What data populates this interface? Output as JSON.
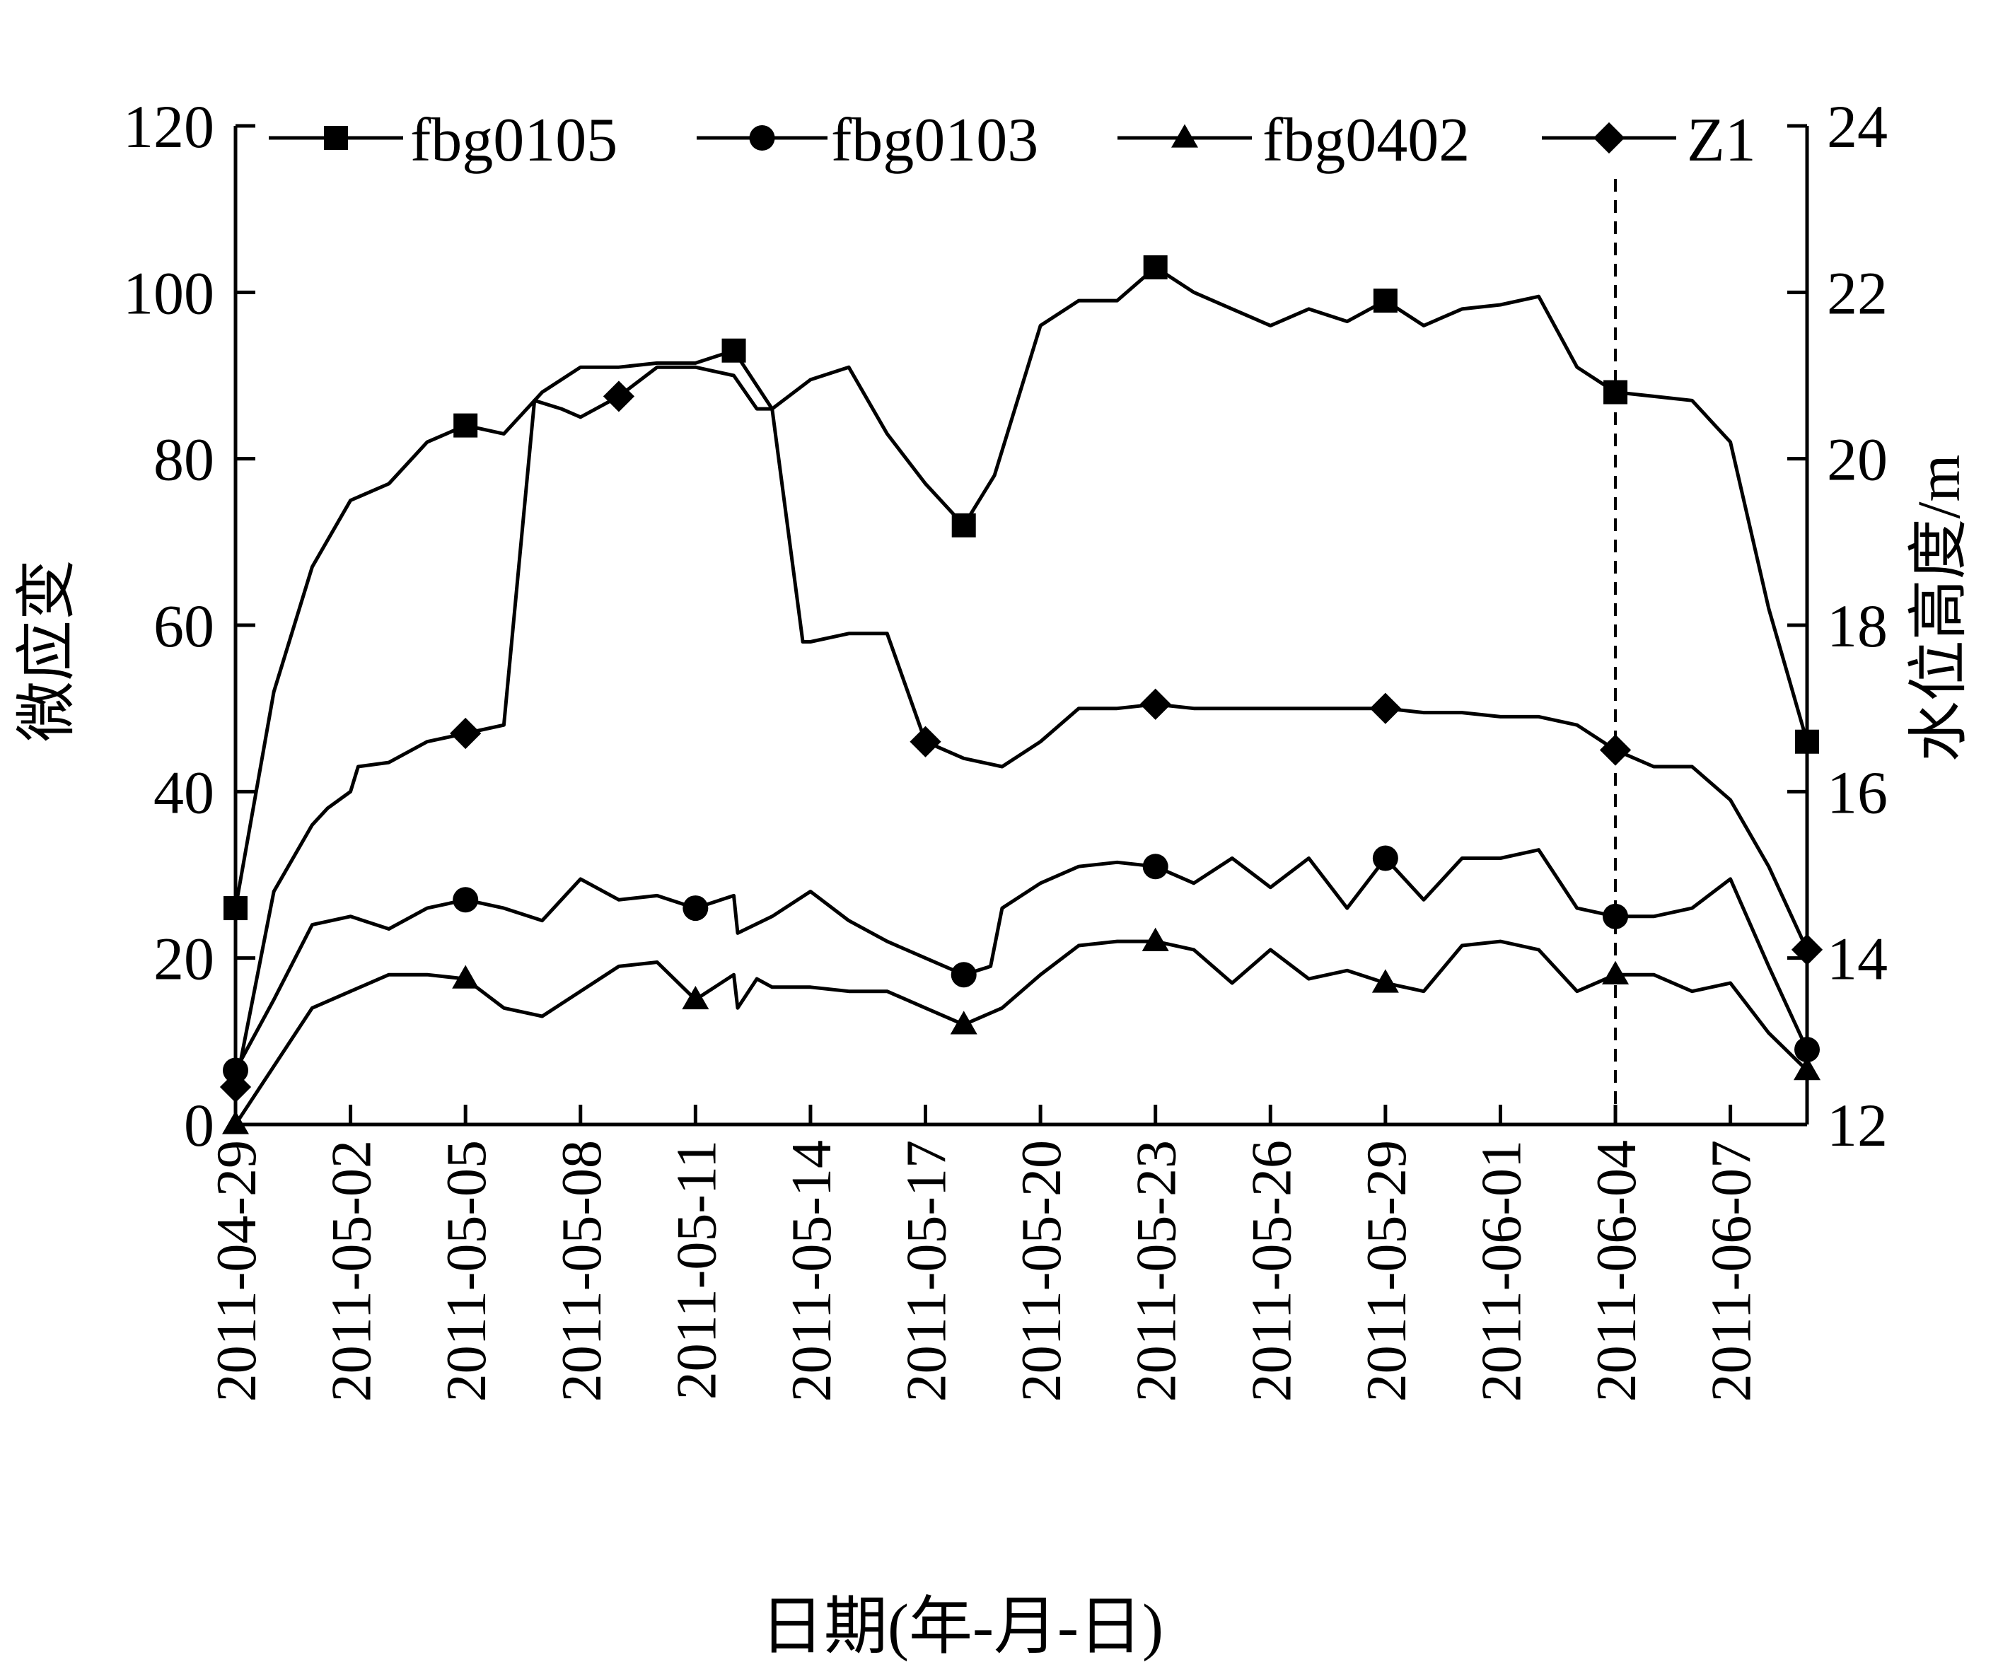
{
  "chart_data": {
    "type": "line",
    "title": "",
    "xlabel": "日期(年-月-日)",
    "ylabel": "微应变",
    "y2label": "水位高度/m",
    "ylim": [
      0,
      120
    ],
    "y2lim": [
      12,
      24
    ],
    "xlim": [
      0,
      41
    ],
    "yticks": [
      0,
      20,
      40,
      60,
      80,
      100,
      120
    ],
    "y2ticks": [
      12,
      14,
      16,
      18,
      20,
      22,
      24
    ],
    "x_ticks": [
      {
        "x": 0,
        "label": "2011-04-29"
      },
      {
        "x": 3,
        "label": "2011-05-02"
      },
      {
        "x": 6,
        "label": "2011-05-05"
      },
      {
        "x": 9,
        "label": "2011-05-08"
      },
      {
        "x": 12,
        "label": "2011-05-11"
      },
      {
        "x": 15,
        "label": "2011-05-14"
      },
      {
        "x": 18,
        "label": "2011-05-17"
      },
      {
        "x": 21,
        "label": "2011-05-20"
      },
      {
        "x": 24,
        "label": "2011-05-23"
      },
      {
        "x": 27,
        "label": "2011-05-26"
      },
      {
        "x": 30,
        "label": "2011-05-29"
      },
      {
        "x": 33,
        "label": "2011-06-01"
      },
      {
        "x": 36,
        "label": "2011-06-04"
      },
      {
        "x": 39,
        "label": "2011-06-07"
      }
    ],
    "reference_line": {
      "x": 36,
      "style": "dashed"
    },
    "legend_position": "top",
    "series": [
      {
        "name": "fbg0105",
        "marker": "square",
        "axis": "left",
        "points": [
          [
            0,
            26
          ],
          [
            1,
            52
          ],
          [
            2,
            67
          ],
          [
            3,
            75
          ],
          [
            4,
            77
          ],
          [
            5,
            82
          ],
          [
            6,
            84
          ],
          [
            7,
            83
          ],
          [
            8,
            88
          ],
          [
            9,
            91
          ],
          [
            10,
            91
          ],
          [
            11,
            91.5
          ],
          [
            12,
            91.5
          ],
          [
            13,
            93
          ],
          [
            14,
            86
          ],
          [
            15,
            89.5
          ],
          [
            16,
            91
          ],
          [
            17,
            83
          ],
          [
            18,
            77
          ],
          [
            19,
            72
          ],
          [
            19.8,
            78
          ],
          [
            21,
            96
          ],
          [
            22,
            99
          ],
          [
            23,
            99
          ],
          [
            24,
            103
          ],
          [
            25,
            100
          ],
          [
            26,
            98
          ],
          [
            27,
            96
          ],
          [
            28,
            98
          ],
          [
            29,
            96.5
          ],
          [
            30,
            99
          ],
          [
            31,
            96
          ],
          [
            32,
            98
          ],
          [
            33,
            98.5
          ],
          [
            34,
            99.5
          ],
          [
            35,
            91
          ],
          [
            36,
            88
          ],
          [
            37,
            87.5
          ],
          [
            38,
            87
          ],
          [
            39,
            82
          ],
          [
            40,
            62
          ],
          [
            41,
            46
          ]
        ]
      },
      {
        "name": "fbg0103",
        "marker": "circle",
        "axis": "left",
        "points": [
          [
            0,
            6.5
          ],
          [
            1,
            15
          ],
          [
            2,
            24
          ],
          [
            3,
            25
          ],
          [
            4,
            23.5
          ],
          [
            5,
            26
          ],
          [
            6,
            27
          ],
          [
            7,
            26
          ],
          [
            8,
            24.5
          ],
          [
            9,
            29.5
          ],
          [
            10,
            27
          ],
          [
            11,
            27.5
          ],
          [
            12,
            26
          ],
          [
            13,
            27.5
          ],
          [
            13.1,
            23
          ],
          [
            14,
            25
          ],
          [
            15,
            28
          ],
          [
            16,
            24.5
          ],
          [
            17,
            22
          ],
          [
            18,
            20
          ],
          [
            19,
            18
          ],
          [
            19.7,
            19
          ],
          [
            20,
            26
          ],
          [
            21,
            29
          ],
          [
            22,
            31
          ],
          [
            23,
            31.5
          ],
          [
            24,
            31
          ],
          [
            25,
            29
          ],
          [
            26,
            32
          ],
          [
            27,
            28.5
          ],
          [
            28,
            32
          ],
          [
            29,
            26
          ],
          [
            30,
            32
          ],
          [
            31,
            27
          ],
          [
            32,
            32
          ],
          [
            33,
            32
          ],
          [
            34,
            33
          ],
          [
            35,
            26
          ],
          [
            36,
            25
          ],
          [
            37,
            25
          ],
          [
            38,
            26
          ],
          [
            39,
            29.5
          ],
          [
            40,
            19
          ],
          [
            41,
            9
          ]
        ]
      },
      {
        "name": "fbg0402",
        "marker": "triangle",
        "axis": "left",
        "points": [
          [
            0,
            0
          ],
          [
            1,
            7
          ],
          [
            2,
            14
          ],
          [
            3,
            16
          ],
          [
            4,
            18
          ],
          [
            5,
            18
          ],
          [
            6,
            17.5
          ],
          [
            7,
            14
          ],
          [
            8,
            13
          ],
          [
            9,
            16
          ],
          [
            10,
            19
          ],
          [
            11,
            19.5
          ],
          [
            12,
            15
          ],
          [
            13,
            18
          ],
          [
            13.1,
            14
          ],
          [
            13.6,
            17.5
          ],
          [
            14,
            16.5
          ],
          [
            15,
            16.5
          ],
          [
            16,
            16
          ],
          [
            17,
            16
          ],
          [
            18,
            14
          ],
          [
            19,
            12
          ],
          [
            20,
            14
          ],
          [
            21,
            18
          ],
          [
            22,
            21.5
          ],
          [
            23,
            22
          ],
          [
            24,
            22
          ],
          [
            25,
            21
          ],
          [
            26,
            17
          ],
          [
            27,
            21
          ],
          [
            28,
            17.5
          ],
          [
            29,
            18.5
          ],
          [
            30,
            17
          ],
          [
            31,
            16
          ],
          [
            32,
            21.5
          ],
          [
            33,
            22
          ],
          [
            34,
            21
          ],
          [
            35,
            16
          ],
          [
            36,
            18
          ],
          [
            37,
            18
          ],
          [
            38,
            16
          ],
          [
            39,
            17
          ],
          [
            40,
            11
          ],
          [
            41,
            6.5
          ]
        ]
      },
      {
        "name": "Z1",
        "marker": "diamond",
        "axis": "right",
        "points": [
          [
            0,
            12.45
          ],
          [
            1,
            14.8
          ],
          [
            2,
            15.6
          ],
          [
            2.4,
            15.8
          ],
          [
            3,
            16
          ],
          [
            3.2,
            16.3
          ],
          [
            4,
            16.35
          ],
          [
            5,
            16.6
          ],
          [
            6,
            16.7
          ],
          [
            7,
            16.8
          ],
          [
            7.8,
            20.7
          ],
          [
            8.5,
            20.6
          ],
          [
            9,
            20.5
          ],
          [
            10,
            20.75
          ],
          [
            11,
            21.1
          ],
          [
            12,
            21.1
          ],
          [
            13,
            21
          ],
          [
            13.6,
            20.6
          ],
          [
            14,
            20.6
          ],
          [
            14.8,
            17.8
          ],
          [
            15,
            17.8
          ],
          [
            16,
            17.9
          ],
          [
            17,
            17.9
          ],
          [
            18,
            16.6
          ],
          [
            19,
            16.4
          ],
          [
            20,
            16.3
          ],
          [
            21,
            16.6
          ],
          [
            22,
            17
          ],
          [
            23,
            17
          ],
          [
            24,
            17.05
          ],
          [
            25,
            17
          ],
          [
            26,
            17
          ],
          [
            27,
            17
          ],
          [
            28,
            17
          ],
          [
            29,
            17
          ],
          [
            30,
            17
          ],
          [
            31,
            16.95
          ],
          [
            32,
            16.95
          ],
          [
            33,
            16.9
          ],
          [
            34,
            16.9
          ],
          [
            35,
            16.8
          ],
          [
            36,
            16.5
          ],
          [
            37,
            16.3
          ],
          [
            38,
            16.3
          ],
          [
            39,
            15.9
          ],
          [
            40,
            15.1
          ],
          [
            41,
            14.1
          ]
        ]
      }
    ],
    "marker_points": {
      "fbg0105": [
        0,
        6,
        19,
        24,
        30,
        36,
        41
      ],
      "fbg0103": [
        0,
        6,
        12,
        19,
        24,
        30,
        36,
        41
      ],
      "fbg0402": [
        0,
        6,
        12,
        19,
        24,
        30,
        36,
        41
      ],
      "Z1": [
        0,
        6,
        10,
        18,
        24,
        30,
        36,
        41
      ]
    },
    "extra_markers": {
      "fbg0105": [
        13
      ]
    }
  }
}
